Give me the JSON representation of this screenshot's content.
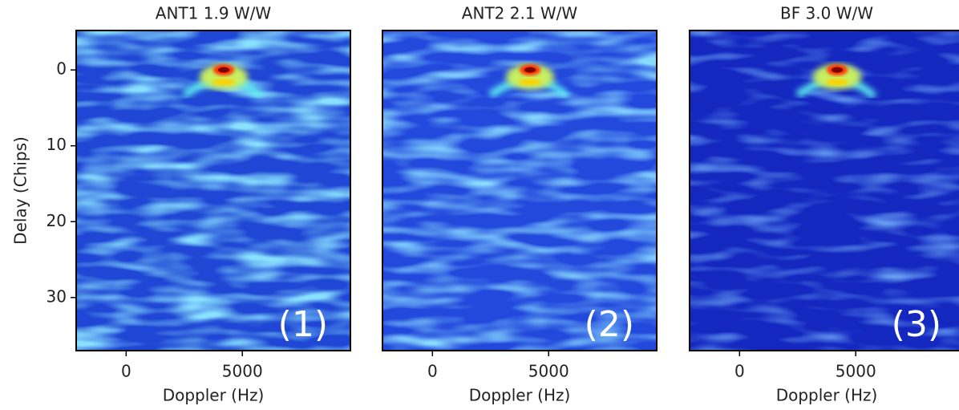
{
  "chart_data": [
    {
      "type": "heatmap",
      "title": "ANT1 1.9 W/W",
      "xlabel": "Doppler (Hz)",
      "ylabel": "Delay (Chips)",
      "annotation": "(1)",
      "xlim": [
        -2150,
        9650
      ],
      "ylim": [
        37,
        -5.2
      ],
      "xticks": [
        0,
        5000
      ],
      "yticks": [
        0,
        10,
        20,
        30
      ]
    },
    {
      "type": "heatmap",
      "title": "ANT2 2.1 W/W",
      "xlabel": "Doppler (Hz)",
      "annotation": "(2)",
      "xlim": [
        -2150,
        9650
      ],
      "ylim": [
        37,
        -5.2
      ],
      "xticks": [
        0,
        5000
      ]
    },
    {
      "type": "heatmap",
      "title": "BF 3.0 W/W",
      "xlabel": "Doppler (Hz)",
      "annotation": "(3)",
      "xlim": [
        -2150,
        9650
      ],
      "ylim": [
        37,
        -5.2
      ],
      "xticks": [
        0,
        5000
      ]
    }
  ]
}
